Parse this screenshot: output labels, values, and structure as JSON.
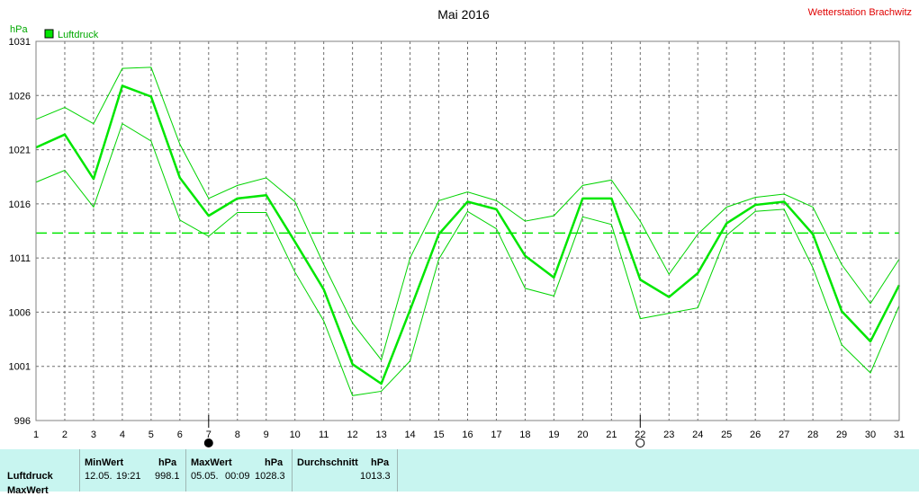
{
  "station": "Wetterstation Brachwitz",
  "colors": {
    "series": "#00e600",
    "series_band": "#00d400",
    "background": "#ffffff",
    "grid": "#6e6e6e",
    "panel": "#c8f5f0",
    "station_text": "#e00000"
  },
  "chart_data": {
    "type": "line",
    "title": "Mai 2016",
    "ylabel": "hPa",
    "legend": {
      "label": "Luftdruck",
      "placement": "top-left"
    },
    "ylim": [
      996,
      1031
    ],
    "yticks": [
      "996",
      "1001",
      "1006",
      "1011",
      "1016",
      "1021",
      "1026",
      "1031"
    ],
    "xlim": [
      1,
      31
    ],
    "x": [
      1,
      2,
      3,
      4,
      5,
      6,
      7,
      8,
      9,
      10,
      11,
      12,
      13,
      14,
      15,
      16,
      17,
      18,
      19,
      20,
      21,
      22,
      23,
      24,
      25,
      26,
      27,
      28,
      29,
      30,
      31
    ],
    "series": [
      {
        "name": "Luftdruck",
        "values": [
          1021.2,
          1022.4,
          1018.3,
          1026.9,
          1025.9,
          1018.4,
          1014.9,
          1016.5,
          1016.8,
          1012.5,
          1008.1,
          1001.2,
          999.4,
          1006.2,
          1013.2,
          1016.2,
          1015.5,
          1011.2,
          1009.2,
          1016.5,
          1016.5,
          1009.0,
          1007.4,
          1009.6,
          1014.2,
          1015.9,
          1016.2,
          1013.2,
          1006.1,
          1003.3,
          1008.5
        ]
      },
      {
        "values": [
          1023.8,
          1024.9,
          1023.4,
          1028.5,
          1028.6,
          1021.5,
          1016.5,
          1017.7,
          1018.4,
          1016.2,
          1010.4,
          1005.0,
          1001.6,
          1011.0,
          1016.3,
          1017.1,
          1016.3,
          1014.4,
          1014.9,
          1017.7,
          1018.2,
          1014.4,
          1009.5,
          1013.2,
          1015.7,
          1016.6,
          1016.9,
          1015.7,
          1010.4,
          1006.8,
          1010.9
        ]
      },
      {
        "values": [
          1018.0,
          1019.1,
          1015.7,
          1023.4,
          1021.8,
          1014.5,
          1013.0,
          1015.2,
          1015.2,
          1009.7,
          1005.2,
          998.3,
          998.7,
          1001.5,
          1010.9,
          1015.3,
          1013.7,
          1008.2,
          1007.5,
          1014.8,
          1014.1,
          1005.4,
          1005.9,
          1006.4,
          1013.1,
          1015.3,
          1015.5,
          1010.1,
          1003.0,
          1000.4,
          1006.6
        ]
      }
    ],
    "average_line": 1013.3,
    "markers": [
      {
        "x": 7,
        "symbol": "new-moon"
      },
      {
        "x": 22,
        "symbol": "full-moon"
      }
    ],
    "grid": true
  },
  "stats": {
    "row_label": "Luftdruck",
    "row_label_2": "MaxWert",
    "min": {
      "header": "MinWert",
      "unit": "hPa",
      "date": "12.05.",
      "time": "19:21",
      "value": "998.1"
    },
    "max": {
      "header": "MaxWert",
      "unit": "hPa",
      "date": "05.05.",
      "time": "00:09",
      "value": "1028.3"
    },
    "avg": {
      "header": "Durchschnitt",
      "unit": "hPa",
      "value": "1013.3"
    }
  }
}
